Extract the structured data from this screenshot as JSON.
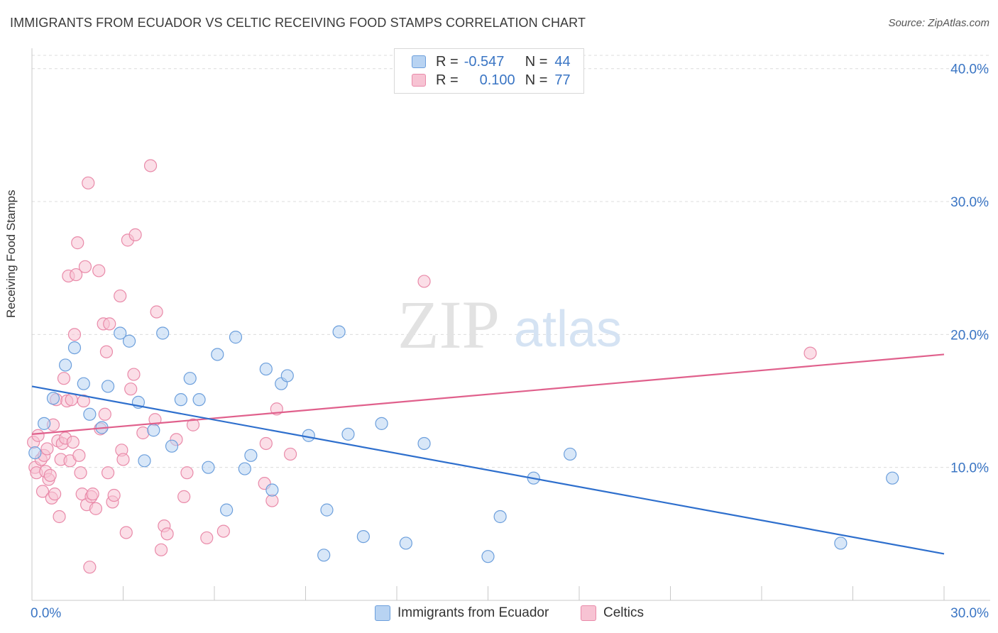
{
  "title": "IMMIGRANTS FROM ECUADOR VS CELTIC RECEIVING FOOD STAMPS CORRELATION CHART",
  "source": "Source: ZipAtlas.com",
  "watermark": {
    "zip": "ZIP",
    "atlas": "atlas"
  },
  "legend_top": [
    {
      "r_label": "R =",
      "r_value": "-0.547",
      "n_label": "N =",
      "n_value": "44"
    },
    {
      "r_label": "R =",
      "r_value": "0.100",
      "n_label": "N =",
      "n_value": "77"
    }
  ],
  "colors": {
    "blue_fill": "#b8d3f2",
    "blue_stroke": "#6c9fdc",
    "blue_line": "#2e6fcd",
    "pink_fill": "#f7c3d3",
    "pink_stroke": "#e98aa9",
    "pink_line": "#e0608c",
    "tick_label": "#3a75c4",
    "grid": "#dcdcdc"
  },
  "chart_data": {
    "type": "scatter",
    "title": "IMMIGRANTS FROM ECUADOR VS CELTIC RECEIVING FOOD STAMPS CORRELATION CHART",
    "xlabel": "",
    "ylabel": "Receiving Food Stamps",
    "xlim": [
      0,
      30
    ],
    "ylim": [
      0,
      41
    ],
    "x_tick_labels": [
      "0.0%",
      "30.0%"
    ],
    "y_ticks": [
      10,
      20,
      30,
      40
    ],
    "y_tick_labels": [
      "10.0%",
      "20.0%",
      "30.0%",
      "40.0%"
    ],
    "grid": true,
    "legend_placement": "bottom",
    "series": [
      {
        "name": "Immigrants from Ecuador",
        "color": "#6c9fdc",
        "trend": [
          [
            0,
            16.1
          ],
          [
            30,
            3.5
          ]
        ],
        "points": [
          [
            0.1,
            11.1
          ],
          [
            0.4,
            13.3
          ],
          [
            0.7,
            15.2
          ],
          [
            1.1,
            17.7
          ],
          [
            1.4,
            19.0
          ],
          [
            1.7,
            16.3
          ],
          [
            1.9,
            14.0
          ],
          [
            2.3,
            13.0
          ],
          [
            2.5,
            16.1
          ],
          [
            2.9,
            20.1
          ],
          [
            3.2,
            19.5
          ],
          [
            3.5,
            14.9
          ],
          [
            3.7,
            10.5
          ],
          [
            4.0,
            12.8
          ],
          [
            4.3,
            20.1
          ],
          [
            4.6,
            11.6
          ],
          [
            4.9,
            15.1
          ],
          [
            5.2,
            16.7
          ],
          [
            5.5,
            15.1
          ],
          [
            5.8,
            10.0
          ],
          [
            6.1,
            18.5
          ],
          [
            6.4,
            6.8
          ],
          [
            6.7,
            19.8
          ],
          [
            7.0,
            9.9
          ],
          [
            7.2,
            10.9
          ],
          [
            7.7,
            17.4
          ],
          [
            7.9,
            8.3
          ],
          [
            8.2,
            16.3
          ],
          [
            8.4,
            16.9
          ],
          [
            9.1,
            12.4
          ],
          [
            9.6,
            3.4
          ],
          [
            9.7,
            6.8
          ],
          [
            10.1,
            20.2
          ],
          [
            10.4,
            12.5
          ],
          [
            10.9,
            4.8
          ],
          [
            11.5,
            13.3
          ],
          [
            12.3,
            4.3
          ],
          [
            12.9,
            11.8
          ],
          [
            15.0,
            3.3
          ],
          [
            15.4,
            6.3
          ],
          [
            16.5,
            9.2
          ],
          [
            17.7,
            11.0
          ],
          [
            26.6,
            4.3
          ],
          [
            28.3,
            9.2
          ]
        ]
      },
      {
        "name": "Celtics",
        "color": "#e98aa9",
        "trend": [
          [
            0,
            12.5
          ],
          [
            30,
            18.5
          ]
        ],
        "points": [
          [
            0.05,
            11.9
          ],
          [
            0.1,
            10.0
          ],
          [
            0.15,
            9.6
          ],
          [
            0.2,
            12.4
          ],
          [
            0.3,
            10.6
          ],
          [
            0.35,
            8.2
          ],
          [
            0.4,
            10.9
          ],
          [
            0.45,
            9.7
          ],
          [
            0.5,
            11.4
          ],
          [
            0.55,
            9.1
          ],
          [
            0.6,
            9.4
          ],
          [
            0.65,
            7.7
          ],
          [
            0.7,
            13.2
          ],
          [
            0.75,
            8.0
          ],
          [
            0.8,
            15.1
          ],
          [
            0.85,
            12.0
          ],
          [
            0.9,
            6.3
          ],
          [
            0.95,
            10.6
          ],
          [
            1.0,
            11.8
          ],
          [
            1.05,
            16.7
          ],
          [
            1.1,
            12.2
          ],
          [
            1.15,
            15.0
          ],
          [
            1.2,
            24.4
          ],
          [
            1.25,
            10.5
          ],
          [
            1.3,
            15.1
          ],
          [
            1.35,
            11.9
          ],
          [
            1.4,
            20.0
          ],
          [
            1.45,
            24.5
          ],
          [
            1.5,
            26.9
          ],
          [
            1.55,
            10.9
          ],
          [
            1.6,
            9.6
          ],
          [
            1.65,
            8.0
          ],
          [
            1.7,
            15.0
          ],
          [
            1.75,
            25.1
          ],
          [
            1.8,
            7.2
          ],
          [
            1.85,
            31.4
          ],
          [
            1.9,
            2.5
          ],
          [
            1.95,
            7.8
          ],
          [
            2.0,
            8.0
          ],
          [
            2.1,
            6.9
          ],
          [
            2.2,
            24.8
          ],
          [
            2.25,
            12.9
          ],
          [
            2.35,
            20.8
          ],
          [
            2.4,
            14.0
          ],
          [
            2.45,
            18.7
          ],
          [
            2.5,
            9.6
          ],
          [
            2.55,
            20.8
          ],
          [
            2.65,
            7.4
          ],
          [
            2.7,
            7.9
          ],
          [
            2.9,
            22.9
          ],
          [
            2.95,
            11.3
          ],
          [
            3.0,
            10.6
          ],
          [
            3.1,
            5.1
          ],
          [
            3.15,
            27.1
          ],
          [
            3.25,
            15.9
          ],
          [
            3.35,
            17.0
          ],
          [
            3.4,
            27.5
          ],
          [
            3.65,
            12.6
          ],
          [
            3.9,
            32.7
          ],
          [
            4.05,
            13.6
          ],
          [
            4.1,
            21.7
          ],
          [
            4.25,
            3.8
          ],
          [
            4.35,
            5.6
          ],
          [
            4.45,
            5.0
          ],
          [
            4.75,
            12.1
          ],
          [
            5.0,
            7.8
          ],
          [
            5.1,
            9.6
          ],
          [
            5.3,
            13.2
          ],
          [
            5.75,
            4.7
          ],
          [
            6.3,
            5.2
          ],
          [
            7.65,
            8.8
          ],
          [
            7.7,
            11.8
          ],
          [
            7.9,
            7.5
          ],
          [
            8.05,
            14.4
          ],
          [
            8.5,
            11.0
          ],
          [
            12.9,
            24.0
          ],
          [
            25.6,
            18.6
          ]
        ]
      }
    ]
  }
}
